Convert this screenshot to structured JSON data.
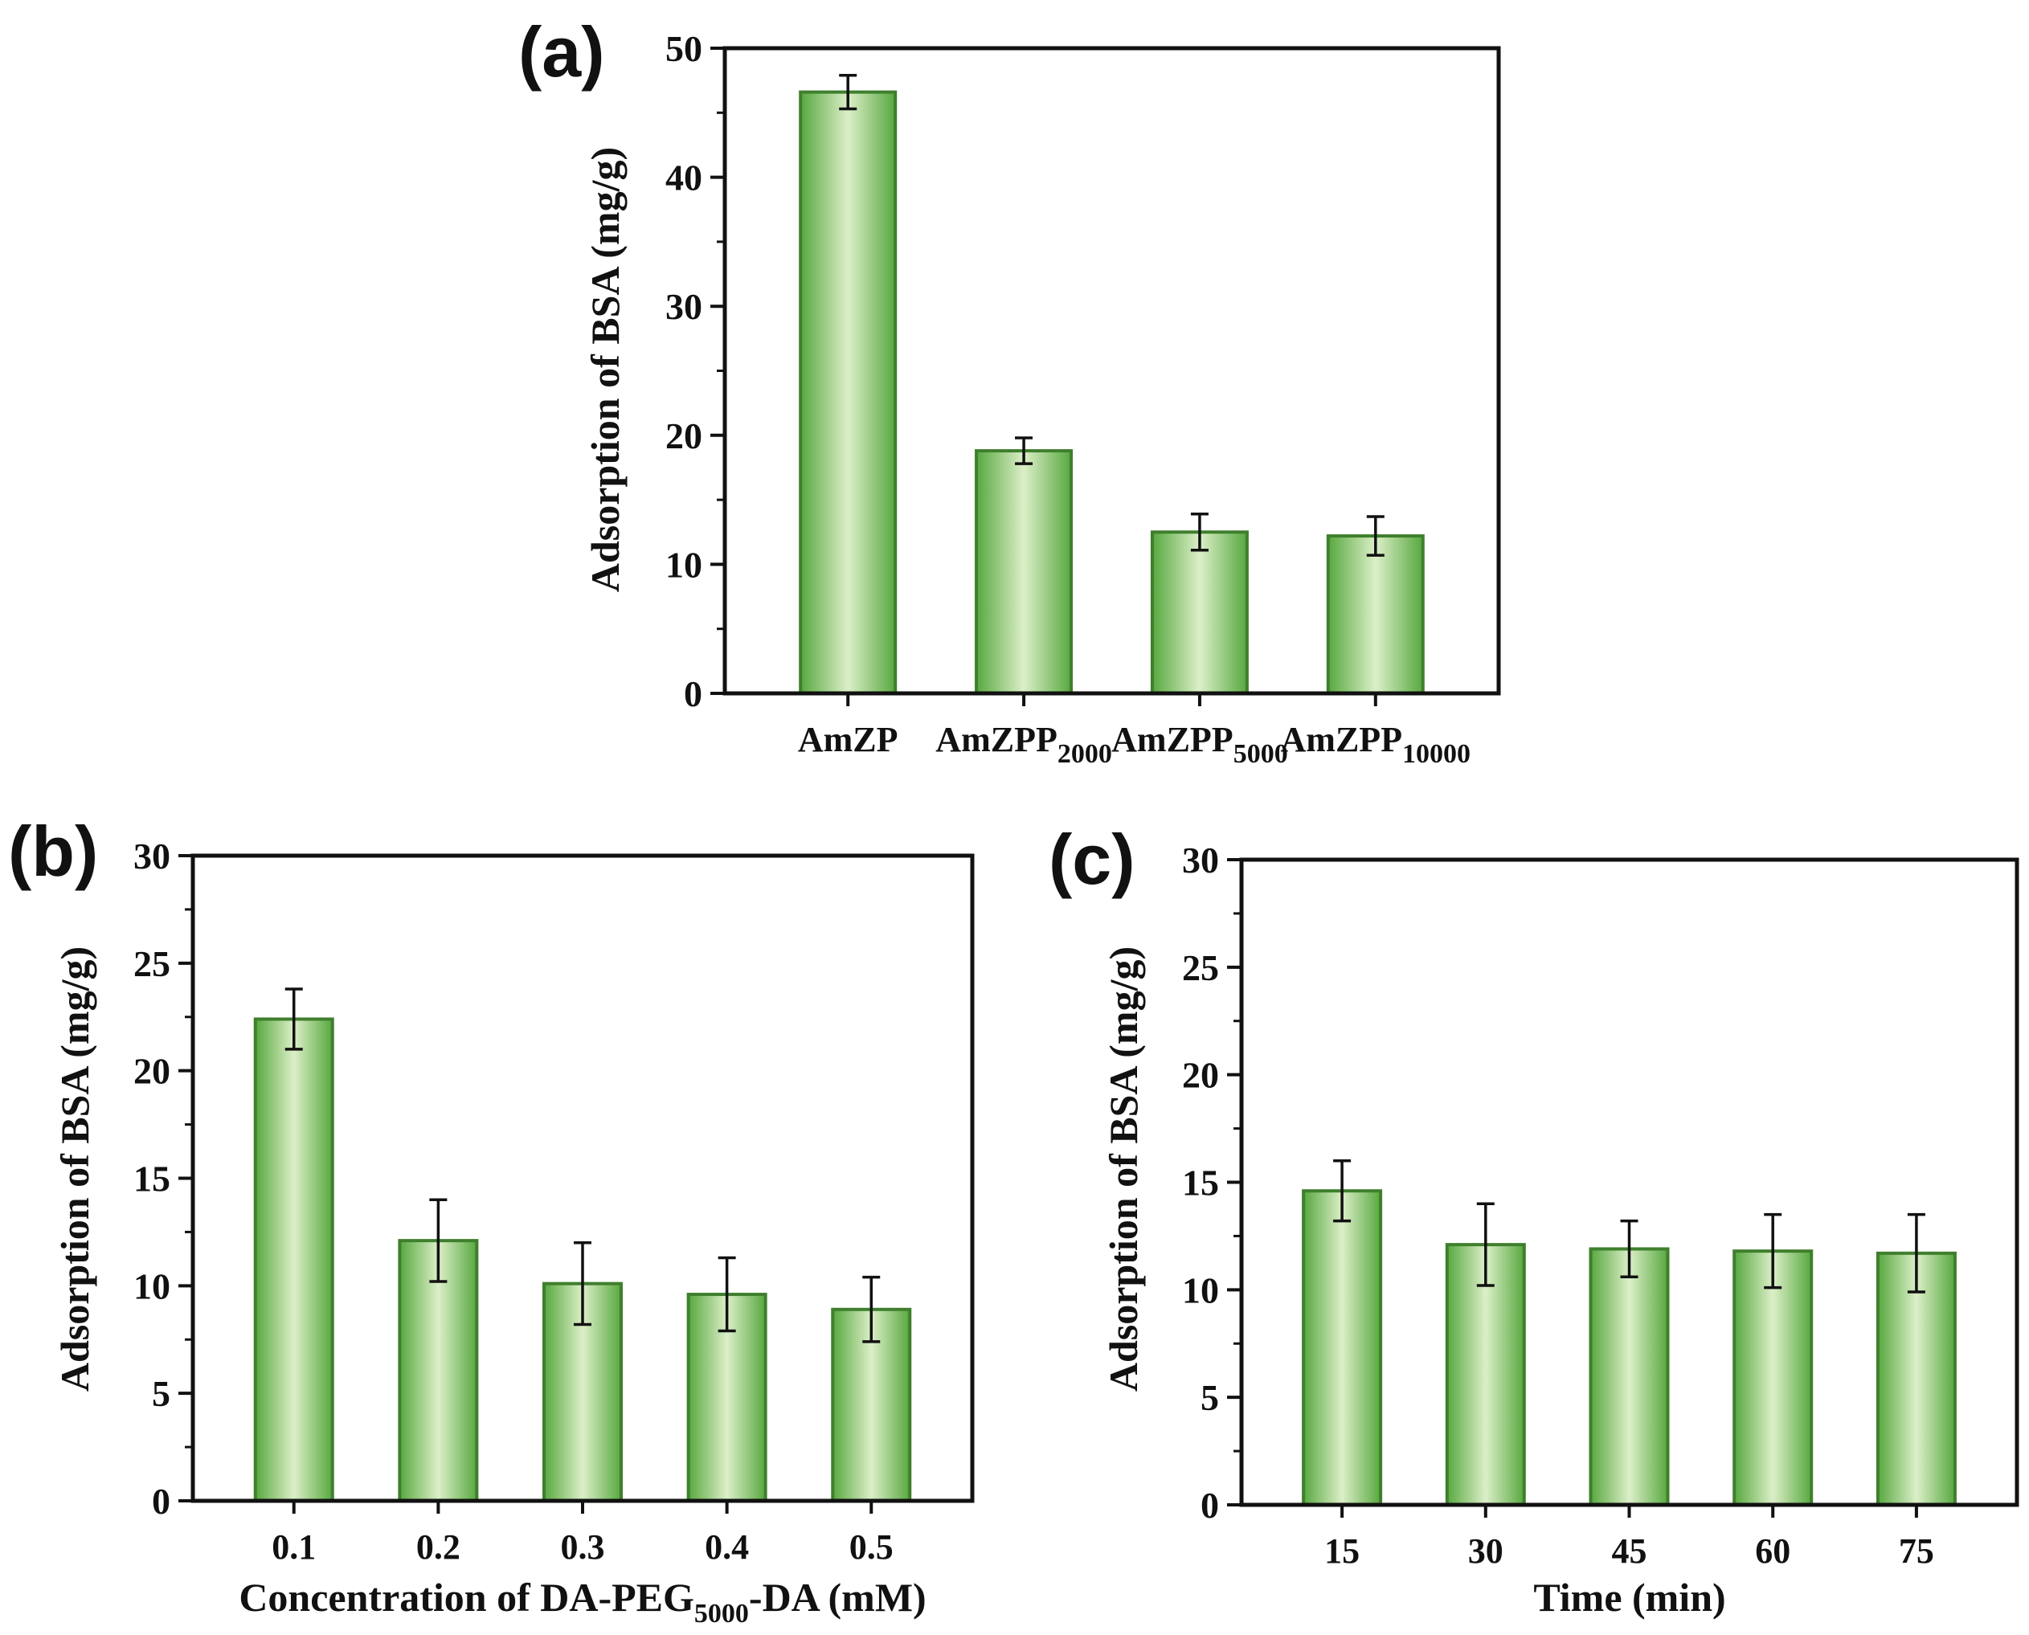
{
  "chart_data": [
    {
      "panel_label": "(a)",
      "type": "bar",
      "categories": [
        {
          "main": "AmZP",
          "sub": ""
        },
        {
          "main": "AmZPP",
          "sub": "2000"
        },
        {
          "main": "AmZPP",
          "sub": "5000"
        },
        {
          "main": "AmZPP",
          "sub": "10000"
        }
      ],
      "values": [
        46.6,
        18.8,
        12.5,
        12.2
      ],
      "errors": [
        1.3,
        1.0,
        1.4,
        1.5
      ],
      "ylabel": "Adsorption of BSA (mg/g)",
      "xlabel": {
        "main": "",
        "sub": "",
        "tail": ""
      },
      "ylim": [
        0,
        50
      ],
      "yticks": [
        0,
        10,
        20,
        30,
        40,
        50
      ],
      "grid": false
    },
    {
      "panel_label": "(b)",
      "type": "bar",
      "categories": [
        {
          "main": "0.1",
          "sub": ""
        },
        {
          "main": "0.2",
          "sub": ""
        },
        {
          "main": "0.3",
          "sub": ""
        },
        {
          "main": "0.4",
          "sub": ""
        },
        {
          "main": "0.5",
          "sub": ""
        }
      ],
      "values": [
        22.4,
        12.1,
        10.1,
        9.6,
        8.9
      ],
      "errors": [
        1.4,
        1.9,
        1.9,
        1.7,
        1.5
      ],
      "ylabel": "Adsorption of BSA (mg/g)",
      "xlabel": {
        "main": "Concentration of DA-PEG",
        "sub": "5000",
        "tail": "-DA (mM)"
      },
      "ylim": [
        0,
        30
      ],
      "yticks": [
        0,
        5,
        10,
        15,
        20,
        25,
        30
      ],
      "grid": false
    },
    {
      "panel_label": "(c)",
      "type": "bar",
      "categories": [
        {
          "main": "15",
          "sub": ""
        },
        {
          "main": "30",
          "sub": ""
        },
        {
          "main": "45",
          "sub": ""
        },
        {
          "main": "60",
          "sub": ""
        },
        {
          "main": "75",
          "sub": ""
        }
      ],
      "values": [
        14.6,
        12.1,
        11.9,
        11.8,
        11.7
      ],
      "errors": [
        1.4,
        1.9,
        1.3,
        1.7,
        1.8
      ],
      "ylabel": "Adsorption of BSA (mg/g)",
      "xlabel": {
        "main": "Time (min)",
        "sub": "",
        "tail": ""
      },
      "ylim": [
        0,
        30
      ],
      "yticks": [
        0,
        5,
        10,
        15,
        20,
        25,
        30
      ],
      "grid": false
    }
  ],
  "colors": {
    "bar_edge": "#3f7f2d",
    "bar_dark": "#57a83f",
    "bar_light": "#dcefc8",
    "axis": "#111111"
  }
}
